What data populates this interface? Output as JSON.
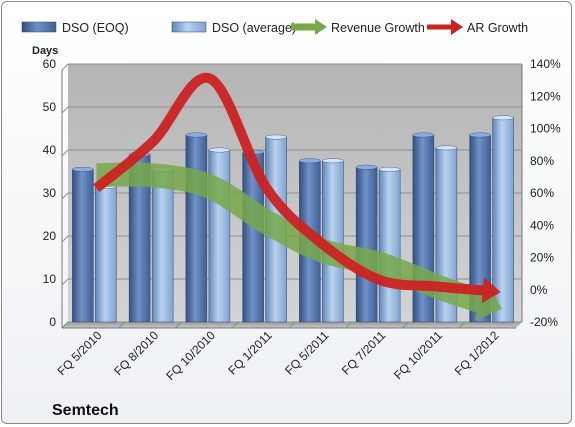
{
  "chart_data": {
    "type": "bar",
    "title": "Semtech",
    "y_left_label": "Days",
    "y_left_ticks": [
      "0",
      "10",
      "20",
      "30",
      "40",
      "50",
      "60"
    ],
    "y_left_lim": [
      0,
      60
    ],
    "y_right_ticks": [
      "-20%",
      "0%",
      "20%",
      "40%",
      "60%",
      "80%",
      "100%",
      "120%",
      "140%"
    ],
    "y_right_lim": [
      -20,
      140
    ],
    "categories": [
      "FQ 5/2010",
      "FQ 8/2010",
      "FQ 10/2010",
      "FQ 1/2011",
      "FQ 5/2011",
      "FQ 7/2011",
      "FQ 10/2011",
      "FQ 1/2012"
    ],
    "series": [
      {
        "name": "DSO (EOQ)",
        "type": "bar",
        "axis": "left",
        "color": "#4a6da7",
        "values": [
          35.5,
          39,
          43.5,
          39.5,
          37.5,
          36,
          43.5,
          43.5
        ]
      },
      {
        "name": "DSO (average)",
        "type": "bar",
        "axis": "left",
        "color": "#8fb3dc",
        "values": [
          31.5,
          35.5,
          40,
          43,
          37.5,
          35.5,
          40.5,
          47.5
        ]
      },
      {
        "name": "Revenue Growth",
        "type": "arrow",
        "axis": "right",
        "color": "#77a84a",
        "values": [
          71,
          71,
          64,
          42,
          24,
          16,
          2,
          -10
        ]
      },
      {
        "name": "AR Growth",
        "type": "arrow",
        "axis": "right",
        "color": "#cc2222",
        "values": [
          63,
          92,
          131,
          63,
          28,
          6,
          2,
          -1
        ]
      }
    ],
    "legend_position": "top",
    "grid": true
  }
}
